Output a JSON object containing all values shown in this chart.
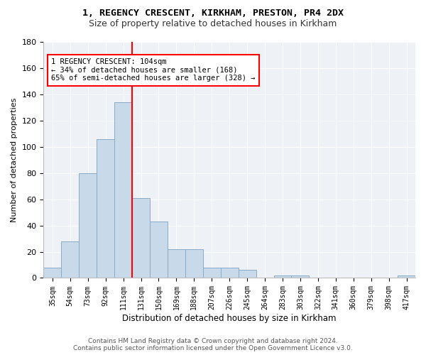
{
  "title1": "1, REGENCY CRESCENT, KIRKHAM, PRESTON, PR4 2DX",
  "title2": "Size of property relative to detached houses in Kirkham",
  "xlabel": "Distribution of detached houses by size in Kirkham",
  "ylabel": "Number of detached properties",
  "bar_labels": [
    "35sqm",
    "54sqm",
    "73sqm",
    "92sqm",
    "111sqm",
    "131sqm",
    "150sqm",
    "169sqm",
    "188sqm",
    "207sqm",
    "226sqm",
    "245sqm",
    "264sqm",
    "283sqm",
    "303sqm",
    "322sqm",
    "341sqm",
    "360sqm",
    "379sqm",
    "398sqm",
    "417sqm"
  ],
  "bar_values": [
    8,
    28,
    80,
    106,
    134,
    61,
    43,
    22,
    22,
    8,
    8,
    6,
    0,
    2,
    2,
    0,
    0,
    0,
    0,
    0,
    2
  ],
  "bar_color": "#c8daea",
  "bar_edge_color": "#88aac8",
  "ylim": [
    0,
    180
  ],
  "yticks": [
    0,
    20,
    40,
    60,
    80,
    100,
    120,
    140,
    160,
    180
  ],
  "vline_x_index": 4,
  "vline_color": "red",
  "annotation_text": "1 REGENCY CRESCENT: 104sqm\n← 34% of detached houses are smaller (168)\n65% of semi-detached houses are larger (328) →",
  "footer": "Contains HM Land Registry data © Crown copyright and database right 2024.\nContains public sector information licensed under the Open Government Licence v3.0.",
  "bg_color": "#ffffff",
  "plot_bg_color": "#eef2f7"
}
